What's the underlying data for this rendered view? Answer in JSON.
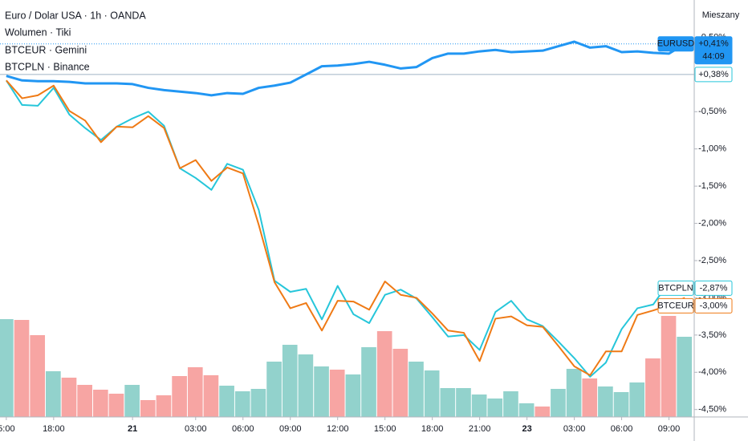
{
  "chart_data": {
    "type": "line",
    "legend_lines": [
      "Euro / Dolar USA · 1h · OANDA",
      "Wolumen · Tiki",
      "BTCEUR · Gemini",
      "BTCPLN · Binance"
    ],
    "mode_button": "Mieszany",
    "countdown": "44:09",
    "price_line_label": "+0,38%",
    "ylim": [
      -4.6,
      1.0
    ],
    "yticks": [
      {
        "value": 0.5,
        "label": "0,50%"
      },
      {
        "value": -0.5,
        "label": "-0,50%"
      },
      {
        "value": -1.0,
        "label": "-1,00%"
      },
      {
        "value": -1.5,
        "label": "-1,50%"
      },
      {
        "value": -2.0,
        "label": "-2,00%"
      },
      {
        "value": -2.5,
        "label": "-2,50%"
      },
      {
        "value": -3.0,
        "label": "-3,00%"
      },
      {
        "value": -3.5,
        "label": "-3,50%"
      },
      {
        "value": -4.0,
        "label": "-4,00%"
      },
      {
        "value": -4.5,
        "label": "-4,50%"
      }
    ],
    "categories": [
      "5:00",
      null,
      null,
      "18:00",
      null,
      null,
      null,
      null,
      "21",
      null,
      null,
      null,
      "03:00",
      null,
      null,
      "06:00",
      null,
      null,
      "09:00",
      null,
      null,
      "12:00",
      null,
      null,
      "15:00",
      null,
      null,
      "18:00",
      null,
      null,
      "21:00",
      null,
      null,
      "23",
      null,
      null,
      "03:00",
      null,
      null,
      "06:00",
      null,
      null,
      "09:00",
      null
    ],
    "series": [
      {
        "name": "EURUSD",
        "color": "#2196f3",
        "last_label": "+0,41%",
        "values": [
          -0.02,
          -0.08,
          -0.09,
          -0.09,
          -0.1,
          -0.12,
          -0.12,
          -0.12,
          -0.13,
          -0.18,
          -0.21,
          -0.23,
          -0.25,
          -0.28,
          -0.25,
          -0.26,
          -0.18,
          -0.15,
          -0.11,
          0.0,
          0.11,
          0.12,
          0.14,
          0.17,
          0.13,
          0.08,
          0.1,
          0.22,
          0.28,
          0.28,
          0.31,
          0.33,
          0.3,
          0.31,
          0.32,
          0.38,
          0.44,
          0.36,
          0.38,
          0.3,
          0.31,
          0.29,
          0.28,
          0.41
        ]
      },
      {
        "name": "BTCPLN",
        "color": "#26c6da",
        "last_label": "-2,87%",
        "values": [
          -0.08,
          -0.41,
          -0.42,
          -0.18,
          -0.54,
          -0.72,
          -0.88,
          -0.7,
          -0.59,
          -0.5,
          -0.69,
          -1.26,
          -1.39,
          -1.55,
          -1.2,
          -1.28,
          -1.82,
          -2.77,
          -2.92,
          -2.88,
          -3.29,
          -2.84,
          -3.22,
          -3.34,
          -2.96,
          -2.89,
          -3.01,
          -3.26,
          -3.52,
          -3.5,
          -3.7,
          -3.19,
          -3.04,
          -3.29,
          -3.38,
          -3.59,
          -3.81,
          -4.06,
          -3.87,
          -3.42,
          -3.14,
          -3.09,
          -2.79,
          -2.87
        ]
      },
      {
        "name": "BTCEUR",
        "color": "#ef7a15",
        "last_label": "-3,00%",
        "values": [
          -0.08,
          -0.32,
          -0.28,
          -0.15,
          -0.49,
          -0.62,
          -0.91,
          -0.7,
          -0.71,
          -0.56,
          -0.72,
          -1.26,
          -1.15,
          -1.43,
          -1.25,
          -1.33,
          -2.02,
          -2.79,
          -3.14,
          -3.07,
          -3.44,
          -3.04,
          -3.05,
          -3.16,
          -2.78,
          -2.96,
          -3.0,
          -3.21,
          -3.44,
          -3.47,
          -3.85,
          -3.28,
          -3.25,
          -3.37,
          -3.39,
          -3.65,
          -3.92,
          -4.04,
          -3.72,
          -3.72,
          -3.23,
          -3.17,
          -3.1,
          -3.0
        ]
      }
    ],
    "volume": {
      "vlim": [
        0,
        520
      ],
      "values": [
        122,
        121,
        102,
        57,
        49,
        40,
        34,
        29,
        40,
        21,
        27,
        51,
        62,
        52,
        39,
        32,
        35,
        69,
        90,
        78,
        63,
        59,
        53,
        87,
        107,
        85,
        69,
        58,
        36,
        36,
        28,
        23,
        32,
        17,
        13,
        35,
        60,
        48,
        38,
        31,
        43,
        73,
        126,
        100
      ],
      "colors": [
        "#92d2cc",
        "#f7a5a3",
        "#f7a5a3",
        "#92d2cc",
        "#f7a5a3",
        "#f7a5a3",
        "#f7a5a3",
        "#f7a5a3",
        "#92d2cc",
        "#f7a5a3",
        "#f7a5a3",
        "#f7a5a3",
        "#f7a5a3",
        "#f7a5a3",
        "#92d2cc",
        "#92d2cc",
        "#92d2cc",
        "#92d2cc",
        "#92d2cc",
        "#92d2cc",
        "#92d2cc",
        "#f7a5a3",
        "#92d2cc",
        "#92d2cc",
        "#f7a5a3",
        "#f7a5a3",
        "#92d2cc",
        "#92d2cc",
        "#92d2cc",
        "#92d2cc",
        "#92d2cc",
        "#92d2cc",
        "#92d2cc",
        "#92d2cc",
        "#f7a5a3",
        "#92d2cc",
        "#92d2cc",
        "#f7a5a3",
        "#92d2cc",
        "#92d2cc",
        "#92d2cc",
        "#f7a5a3",
        "#f7a5a3",
        "#92d2cc"
      ]
    }
  }
}
